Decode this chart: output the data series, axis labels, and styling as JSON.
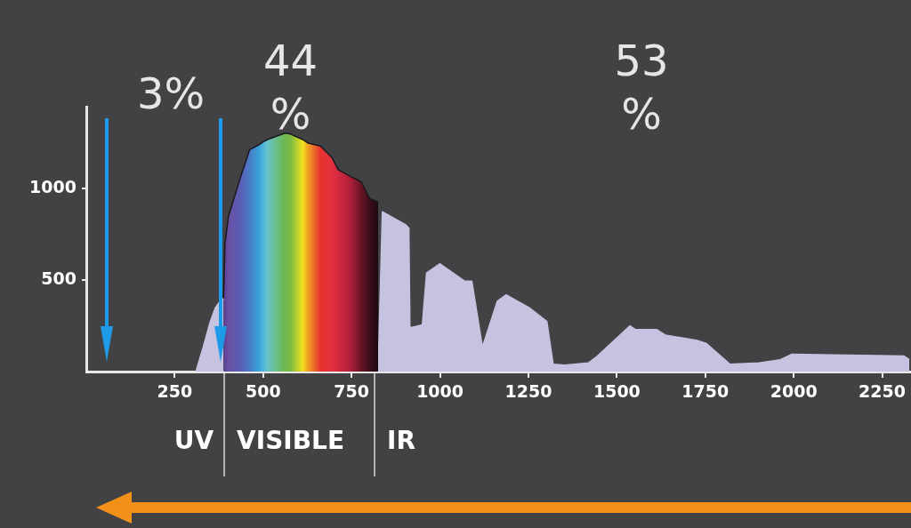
{
  "chart_data": {
    "type": "area",
    "xlim": [
      0,
      2330
    ],
    "ylim": [
      0,
      1450
    ],
    "xticks": [
      250,
      500,
      750,
      1000,
      1250,
      1500,
      1750,
      2000,
      2250
    ],
    "yticks": [
      500,
      1000
    ],
    "grid": false,
    "legend": false,
    "marker": "none",
    "series": [
      {
        "color": "#c5c3e0",
        "x": [
          310,
          330,
          350,
          365,
          378,
          388
        ],
        "values": [
          0,
          130,
          270,
          350,
          385,
          400
        ]
      },
      {
        "color": "#e8333f",
        "x": [
          388,
          392,
          402,
          437,
          462,
          487,
          502,
          512,
          562,
          577,
          612,
          627,
          662,
          695,
          712,
          745,
          777,
          802,
          825
        ],
        "values": [
          400,
          700,
          850,
          1070,
          1215,
          1240,
          1260,
          1270,
          1305,
          1300,
          1270,
          1250,
          1235,
          1170,
          1105,
          1070,
          1040,
          945,
          930
        ],
        "colors": [
          "#5b3f95",
          "#5e4398",
          "#6a4fa3",
          "#5a5fb5",
          "#4a7cc8",
          "#3aa0d8",
          "#50b8da",
          "#68c4c8",
          "#6db84e",
          "#7aba42",
          "#f1e020",
          "#f0a020",
          "#e8332f",
          "#e4303e",
          "#d42a40",
          "#b0203a",
          "#6a1525",
          "#3a0c18",
          "#1a0a12"
        ]
      },
      {
        "color": "#c5c3e0",
        "x": [
          825,
          837,
          902,
          912,
          915,
          950,
          962,
          1000,
          1070,
          1090,
          1120,
          1162,
          1187,
          1252,
          1302,
          1320,
          1352,
          1420,
          1445,
          1537,
          1552,
          1612,
          1637,
          1727,
          1752,
          1820,
          1902,
          1962,
          1995,
          2312,
          2327
        ],
        "values": [
          0,
          875,
          805,
          785,
          240,
          255,
          540,
          590,
          495,
          495,
          135,
          385,
          420,
          350,
          275,
          40,
          35,
          48,
          85,
          250,
          230,
          230,
          200,
          170,
          155,
          40,
          48,
          65,
          95,
          85,
          65
        ]
      }
    ],
    "ref_lines": [
      {
        "axis": "x",
        "value": 390,
        "label": "VISIBLE",
        "color": "#d8d8d8"
      },
      {
        "axis": "x",
        "value": 815,
        "label": "IR",
        "color": "#d8d8d8"
      }
    ],
    "annotations": [
      "3%",
      "44 %",
      "53 %",
      "UV"
    ]
  }
}
